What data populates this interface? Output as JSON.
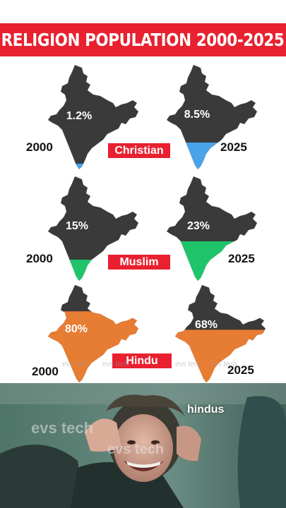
{
  "title": "RELIGION POPULATION 2000-2025",
  "colors": {
    "banner": "#e8202f",
    "map_base": "#3a3a3a",
    "christian": "#4aa3e8",
    "muslim": "#1fc46a",
    "hindu": "#e77c33"
  },
  "rows": [
    {
      "religion": "Christian",
      "year_start": "2000",
      "year_end": "2025",
      "pct_start": "1.2%",
      "pct_end": "8.5%",
      "share_start": 0.012,
      "share_end": 0.085
    },
    {
      "religion": "Muslim",
      "year_start": "2000",
      "year_end": "2025",
      "pct_start": "15%",
      "pct_end": "23%",
      "share_start": 0.15,
      "share_end": 0.23
    },
    {
      "religion": "Hindu",
      "year_start": "2000",
      "year_end": "2025",
      "pct_start": "80%",
      "pct_end": "68%",
      "share_start": 0.8,
      "share_end": 0.68
    }
  ],
  "watermark": "evs tech",
  "photo_caption": "hindus"
}
